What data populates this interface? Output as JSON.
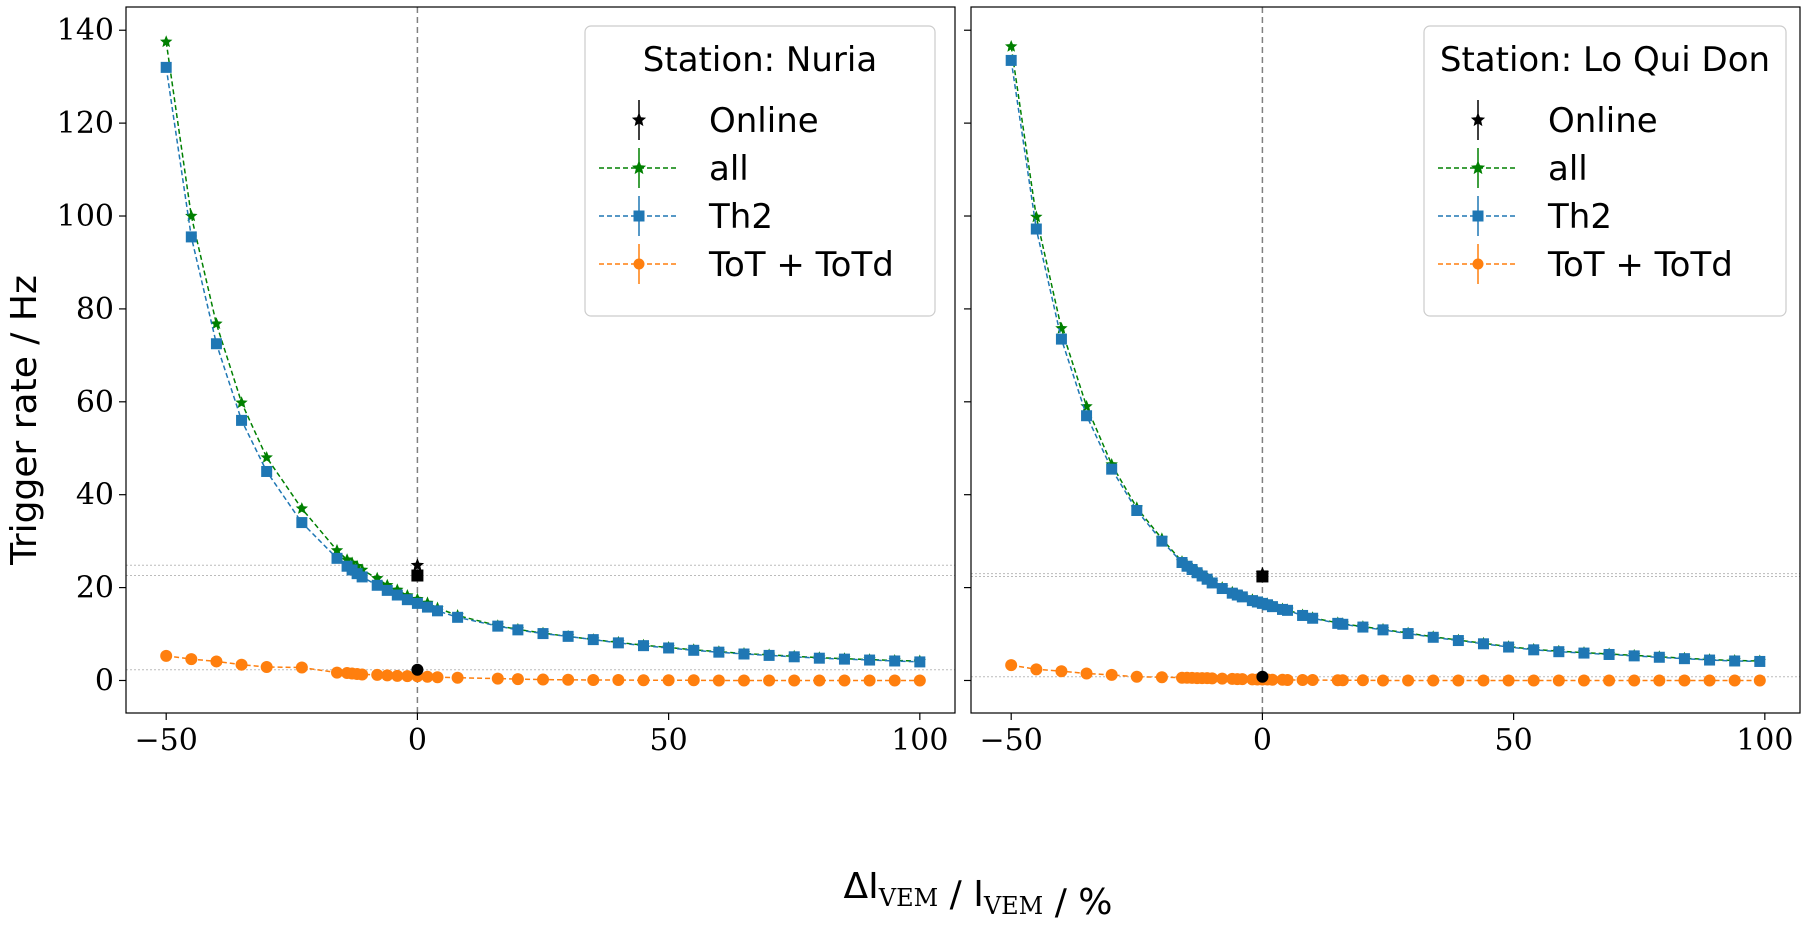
{
  "figure": {
    "xlabel": "ΔI_VEM / I_VEM / %",
    "ylabel": "Trigger rate / Hz"
  },
  "chart_data": [
    {
      "type": "line",
      "title": "Station: Nuria",
      "xlim": [
        -58,
        107
      ],
      "ylim": [
        -7,
        145
      ],
      "xticks": [
        -50,
        0,
        50,
        100
      ],
      "yticks": [
        0,
        20,
        40,
        60,
        80,
        100,
        120,
        140
      ],
      "xtick_labels": [
        "−50",
        "0",
        "50",
        "100"
      ],
      "ytick_labels": [
        "0",
        "20",
        "40",
        "60",
        "80",
        "100",
        "120",
        "140"
      ],
      "legend": {
        "position": "top-right",
        "title": "Station: Nuria"
      },
      "vline_x": 0,
      "hlines": [
        24.8,
        22.6,
        2.3
      ],
      "online": [
        {
          "marker": "star",
          "x": 0,
          "y": 24.8
        },
        {
          "marker": "square",
          "x": 0,
          "y": 22.6
        },
        {
          "marker": "circle",
          "x": 0,
          "y": 2.3
        }
      ],
      "series": [
        {
          "name": "all",
          "color": "#008000",
          "marker": "star",
          "x": [
            -50,
            -45,
            -40,
            -35,
            -30,
            -23,
            -16,
            -14,
            -13,
            -12,
            -11,
            -8,
            -6,
            -4,
            -2,
            0,
            2,
            4,
            8,
            16,
            20,
            25,
            30,
            35,
            40,
            45,
            50,
            55,
            60,
            65,
            70,
            75,
            80,
            85,
            90,
            95,
            100
          ],
          "y": [
            137.5,
            100,
            76.8,
            59.8,
            48.0,
            37.0,
            28.0,
            26.0,
            25.3,
            24.6,
            23.8,
            22.0,
            20.5,
            19.5,
            18.3,
            17.5,
            16.7,
            15.6,
            14.0,
            11.8,
            11.0,
            10.2,
            9.5,
            8.8,
            8.2,
            7.6,
            7.1,
            6.6,
            6.2,
            5.8,
            5.5,
            5.2,
            4.9,
            4.7,
            4.5,
            4.3,
            4.2
          ]
        },
        {
          "name": "Th2",
          "color": "#1f77b4",
          "marker": "square",
          "x": [
            -50,
            -45,
            -40,
            -35,
            -30,
            -23,
            -16,
            -14,
            -13,
            -12,
            -11,
            -8,
            -6,
            -4,
            -2,
            0,
            2,
            4,
            8,
            16,
            20,
            25,
            30,
            35,
            40,
            45,
            50,
            55,
            60,
            65,
            70,
            75,
            80,
            85,
            90,
            95,
            100
          ],
          "y": [
            132,
            95.5,
            72.5,
            56.0,
            45.0,
            34.0,
            26.3,
            24.6,
            23.8,
            23.0,
            22.3,
            20.5,
            19.4,
            18.4,
            17.4,
            16.6,
            15.8,
            15.0,
            13.6,
            11.7,
            10.9,
            10.1,
            9.5,
            8.8,
            8.1,
            7.5,
            7.0,
            6.5,
            6.1,
            5.7,
            5.4,
            5.1,
            4.8,
            4.6,
            4.4,
            4.2,
            4.0
          ]
        },
        {
          "name": "ToT + ToTd",
          "color": "#ff7f0e",
          "marker": "circle",
          "x": [
            -50,
            -45,
            -40,
            -35,
            -30,
            -23,
            -16,
            -14,
            -13,
            -12,
            -11,
            -8,
            -6,
            -4,
            -2,
            0,
            2,
            4,
            8,
            16,
            20,
            25,
            30,
            35,
            40,
            45,
            50,
            55,
            60,
            65,
            70,
            75,
            80,
            85,
            90,
            95,
            100
          ],
          "y": [
            5.3,
            4.6,
            4.1,
            3.4,
            2.9,
            2.8,
            1.7,
            1.6,
            1.5,
            1.4,
            1.3,
            1.2,
            1.1,
            1.0,
            0.95,
            0.9,
            0.8,
            0.7,
            0.6,
            0.4,
            0.3,
            0.2,
            0.15,
            0.1,
            0.1,
            0.05,
            0.05,
            0.05,
            0,
            0,
            0,
            0,
            0,
            0,
            0,
            0,
            0
          ]
        }
      ]
    },
    {
      "type": "line",
      "title": "Station: Lo Qui Don",
      "xlim": [
        -58,
        107
      ],
      "ylim": [
        -7,
        145
      ],
      "xticks": [
        -50,
        0,
        50,
        100
      ],
      "yticks": [
        0,
        20,
        40,
        60,
        80,
        100,
        120,
        140
      ],
      "xtick_labels": [
        "−50",
        "0",
        "50",
        "100"
      ],
      "ytick_labels": [],
      "legend": {
        "position": "top-right",
        "title": "Station: Lo Qui Don"
      },
      "vline_x": 0,
      "hlines": [
        23.0,
        22.4,
        0.8
      ],
      "online": [
        {
          "marker": "star",
          "x": 0,
          "y": 23.0
        },
        {
          "marker": "square",
          "x": 0,
          "y": 22.4
        },
        {
          "marker": "circle",
          "x": 0,
          "y": 0.8
        }
      ],
      "series": [
        {
          "name": "all",
          "color": "#008000",
          "marker": "star",
          "x": [
            -50,
            -45,
            -40,
            -35,
            -30,
            -25,
            -20,
            -16,
            -15,
            -14,
            -13,
            -12,
            -11,
            -10,
            -8,
            -6,
            -5,
            -4,
            -2,
            -1,
            0,
            1,
            2,
            4,
            5,
            8,
            10,
            15,
            16,
            20,
            24,
            29,
            34,
            39,
            44,
            49,
            54,
            59,
            64,
            69,
            74,
            79,
            84,
            89,
            94,
            99
          ],
          "y": [
            136.5,
            99.8,
            75.8,
            59.0,
            46.5,
            37.2,
            30.5,
            25.6,
            24.8,
            24.1,
            23.4,
            22.7,
            22.0,
            21.2,
            20.0,
            19.0,
            18.6,
            18.2,
            17.4,
            17.1,
            16.8,
            16.5,
            16.1,
            15.4,
            15.2,
            14.1,
            13.5,
            12.4,
            12.2,
            11.6,
            11.0,
            10.2,
            9.4,
            8.7,
            8.0,
            7.3,
            6.7,
            6.3,
            6.0,
            5.7,
            5.4,
            5.1,
            4.8,
            4.5,
            4.3,
            4.2
          ]
        },
        {
          "name": "Th2",
          "color": "#1f77b4",
          "marker": "square",
          "x": [
            -50,
            -45,
            -40,
            -35,
            -30,
            -25,
            -20,
            -16,
            -15,
            -14,
            -13,
            -12,
            -11,
            -10,
            -8,
            -6,
            -5,
            -4,
            -2,
            -1,
            0,
            1,
            2,
            4,
            5,
            8,
            10,
            15,
            16,
            20,
            24,
            29,
            34,
            39,
            44,
            49,
            54,
            59,
            64,
            69,
            74,
            79,
            84,
            89,
            94,
            99
          ],
          "y": [
            133.5,
            97.2,
            73.5,
            57.0,
            45.5,
            36.6,
            30.0,
            25.4,
            24.6,
            23.9,
            23.2,
            22.5,
            21.8,
            21.0,
            19.8,
            18.8,
            18.4,
            18.0,
            17.2,
            16.9,
            16.6,
            16.3,
            15.9,
            15.3,
            15.1,
            14.0,
            13.4,
            12.3,
            12.1,
            11.5,
            10.9,
            10.1,
            9.3,
            8.6,
            7.9,
            7.2,
            6.6,
            6.2,
            5.9,
            5.6,
            5.3,
            5.0,
            4.7,
            4.4,
            4.2,
            4.1
          ]
        },
        {
          "name": "ToT + ToTd",
          "color": "#ff7f0e",
          "marker": "circle",
          "x": [
            -50,
            -45,
            -40,
            -35,
            -30,
            -25,
            -20,
            -16,
            -15,
            -14,
            -13,
            -12,
            -11,
            -10,
            -8,
            -6,
            -5,
            -4,
            -2,
            -1,
            0,
            1,
            2,
            4,
            5,
            8,
            10,
            15,
            16,
            20,
            24,
            29,
            34,
            39,
            44,
            49,
            54,
            59,
            64,
            69,
            74,
            79,
            84,
            89,
            94,
            99
          ],
          "y": [
            3.3,
            2.4,
            2.0,
            1.5,
            1.2,
            0.8,
            0.7,
            0.6,
            0.6,
            0.55,
            0.5,
            0.5,
            0.5,
            0.45,
            0.4,
            0.35,
            0.3,
            0.3,
            0.25,
            0.2,
            0.2,
            0.2,
            0.15,
            0.15,
            0.1,
            0.1,
            0.1,
            0.05,
            0.05,
            0.05,
            0,
            0,
            0,
            0,
            0,
            0,
            0,
            0,
            0,
            0,
            0,
            0,
            0,
            0,
            0,
            0
          ]
        }
      ]
    }
  ]
}
